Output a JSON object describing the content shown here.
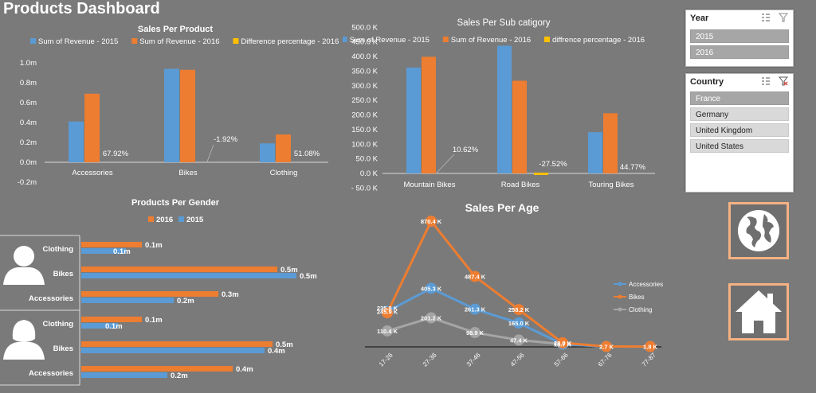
{
  "dashboard": {
    "title": "Products Dashboard"
  },
  "colors": {
    "blue": "#5b9bd5",
    "orange": "#ed7d31",
    "yellow": "#ffc000",
    "gray": "#a5a5a5",
    "accent_border": "#f4b183"
  },
  "sales_per_product": {
    "title": "Sales Per Product",
    "legend": [
      "Sum of Revenue - 2015",
      "Sum of Revenue - 2016",
      "Difference percentage - 2016"
    ],
    "y_ticks": [
      "1.0m",
      "0.8m",
      "0.6m",
      "0.4m",
      "0.2m",
      "0.0m",
      "-0.2m"
    ],
    "categories": [
      "Accessories",
      "Bikes",
      "Clothing"
    ],
    "labels": [
      "67.92%",
      "-1.92%",
      "51.08%"
    ]
  },
  "sales_per_subcategory": {
    "title": "Sales Per Sub catigory",
    "legend": [
      "Sum of Revenue - 2015",
      "Sum of Revenue - 2016",
      "diffrence percentage - 2016"
    ],
    "y_ticks": [
      "500.0 K",
      "450.0 K",
      "400.0 K",
      "350.0 K",
      "300.0 K",
      "250.0 K",
      "200.0 K",
      "150.0 K",
      "100.0 K",
      "50.0 K",
      "0.0 K",
      "- 50.0 K"
    ],
    "categories": [
      "Mountain Bikes",
      "Road Bikes",
      "Touring Bikes"
    ],
    "labels": [
      "10.62%",
      "-27.52%",
      "44.77%"
    ]
  },
  "products_per_gender": {
    "title": "Products Per Gender",
    "legend": [
      "2016",
      "2015"
    ],
    "categories": [
      "Clothing",
      "Bikes",
      "Accessories"
    ],
    "male_2016_labels": [
      "0.1m",
      "0.5m",
      "0.3m"
    ],
    "male_2015_labels": [
      "0.1m",
      "0.5m",
      "0.2m"
    ],
    "female_2016_labels": [
      "0.1m",
      "0.5m",
      "0.4m"
    ],
    "female_2015_labels": [
      "0.1m",
      "0.4m",
      "0.2m"
    ]
  },
  "sales_per_age": {
    "title": "Sales Per Age",
    "x_ticks": [
      "17-26",
      "27-36",
      "37-46",
      "47-56",
      "57-66",
      "67-76",
      "77-87"
    ],
    "legend": [
      "Accessories",
      "Bikes",
      "Clothing"
    ]
  },
  "year_slicer": {
    "title": "Year",
    "items": [
      "2015",
      "2016"
    ]
  },
  "country_slicer": {
    "title": "Country",
    "items": [
      "France",
      "Germany",
      "United Kingdom",
      "United States"
    ]
  },
  "chart_data": [
    {
      "type": "bar",
      "title": "Sales Per Product",
      "categories": [
        "Accessories",
        "Bikes",
        "Clothing"
      ],
      "series": [
        {
          "name": "Sum of Revenue - 2015",
          "values": [
            0.41,
            0.94,
            0.19
          ]
        },
        {
          "name": "Sum of Revenue - 2016",
          "values": [
            0.69,
            0.93,
            0.28
          ]
        },
        {
          "name": "Difference percentage - 2016",
          "values": [
            67.92,
            -1.92,
            51.08
          ]
        }
      ],
      "ylim": [
        -0.2,
        1.0
      ],
      "y_unit": "m"
    },
    {
      "type": "bar",
      "title": "Sales Per Sub catigory",
      "categories": [
        "Mountain Bikes",
        "Road Bikes",
        "Touring Bikes"
      ],
      "series": [
        {
          "name": "Sum of Revenue - 2015",
          "values": [
            362,
            437,
            141
          ]
        },
        {
          "name": "Sum of Revenue - 2016",
          "values": [
            399,
            317,
            206
          ]
        },
        {
          "name": "diffrence percentage - 2016",
          "values": [
            10.62,
            -27.52,
            44.77
          ]
        }
      ],
      "ylim": [
        -50,
        500
      ],
      "y_unit": "K"
    },
    {
      "type": "bar",
      "orientation": "horizontal",
      "title": "Products Per Gender",
      "categories": [
        "Clothing",
        "Bikes",
        "Accessories"
      ],
      "series": [
        {
          "name": "2016",
          "group": "male",
          "values": [
            0.1,
            0.5,
            0.3
          ]
        },
        {
          "name": "2015",
          "group": "male",
          "values": [
            0.1,
            0.5,
            0.2
          ]
        },
        {
          "name": "2016",
          "group": "female",
          "values": [
            0.1,
            0.5,
            0.4
          ]
        },
        {
          "name": "2015",
          "group": "female",
          "values": [
            0.1,
            0.4,
            0.2
          ]
        }
      ],
      "y_unit": "m"
    },
    {
      "type": "line",
      "title": "Sales Per Age",
      "x": [
        "17-26",
        "27-36",
        "37-46",
        "47-56",
        "57-66",
        "67-76",
        "77-87"
      ],
      "series": [
        {
          "name": "Accessories",
          "values": [
            245.9,
            405.3,
            261.3,
            165.0,
            18.7,
            2.7,
            1.8
          ],
          "labels": [
            "245.9 K",
            "405.3 K",
            "261.3 K",
            "165.0 K",
            "18.7 K",
            "2.7 K",
            "1.8 K"
          ]
        },
        {
          "name": "Bikes",
          "values": [
            235.8,
            870.4,
            487.4,
            258.2,
            28.0,
            2.7,
            1.8
          ],
          "labels": [
            "235.8 K",
            "870.4 K",
            "487.4 K",
            "258.2 K",
            "28.0 K",
            "",
            ""
          ]
        },
        {
          "name": "Clothing",
          "values": [
            110.4,
            201.2,
            98.9,
            47.4,
            18.7,
            2.7,
            1.8
          ],
          "labels": [
            "110.4 K",
            "201.2 K",
            "98.9 K",
            "47.4 K",
            "",
            "",
            ""
          ]
        }
      ],
      "y_unit": "K"
    }
  ]
}
